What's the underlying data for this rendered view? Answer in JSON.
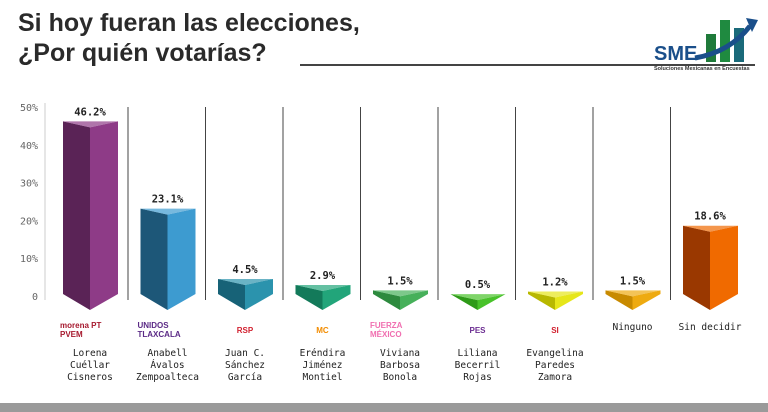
{
  "title_line1": "Si hoy fueran las elecciones,",
  "title_line2": "¿Por quién votarías?",
  "logo": {
    "text": "SME",
    "subtitle": "Soluciones Mexicanas en Encuestas"
  },
  "chart_data": {
    "type": "bar",
    "ylim": [
      0,
      50
    ],
    "yticks": [
      "0",
      "10%",
      "20%",
      "30%",
      "40%",
      "50%"
    ],
    "grid": false,
    "categories": [
      "Lorena Cuéllar Cisneros",
      "Anabell Ávalos Zempoalteca",
      "Juan C. Sánchez García",
      "Eréndira Jiménez Montiel",
      "Viviana Barbosa Bonola",
      "Liliana Becerril Rojas",
      "Evangelina Paredes Zamora",
      "Ninguno",
      "Sin decidir"
    ],
    "name_lines": [
      [
        "Lorena",
        "Cuéllar",
        "Cisneros"
      ],
      [
        "Anabell",
        "Ávalos",
        "Zempoalteca"
      ],
      [
        "Juan C.",
        "Sánchez",
        "García"
      ],
      [
        "Eréndira",
        "Jiménez",
        "Montiel"
      ],
      [
        "Viviana",
        "Barbosa",
        "Bonola"
      ],
      [
        "Liliana",
        "Becerril",
        "Rojas"
      ],
      [
        "Evangelina",
        "Paredes",
        "Zamora"
      ],
      [
        "Ninguno"
      ],
      [
        "Sin decidir"
      ]
    ],
    "values": [
      46.2,
      23.1,
      4.5,
      2.9,
      1.5,
      0.5,
      1.2,
      1.5,
      18.6
    ],
    "labels": [
      "46.2%",
      "23.1%",
      "4.5%",
      "2.9%",
      "1.5%",
      "0.5%",
      "1.2%",
      "1.5%",
      "18.6%"
    ],
    "colors": [
      [
        "#5a2356",
        "#8e3b87"
      ],
      [
        "#1d5778",
        "#3d9bd0"
      ],
      [
        "#176277",
        "#2b93ad"
      ],
      [
        "#137a5a",
        "#22a57a"
      ],
      [
        "#2d8a3e",
        "#46b05a"
      ],
      [
        "#2e9a18",
        "#48c22a"
      ],
      [
        "#b8b800",
        "#e6e61a"
      ],
      [
        "#c88a00",
        "#eeaa10"
      ],
      [
        "#9a3800",
        "#f06a00"
      ]
    ],
    "party_logos": [
      "morena PT PVEM",
      "UNIDOS TLAXCALA",
      "RSP",
      "MC",
      "FUERZA MÉXICO",
      "PES",
      "SI",
      "",
      ""
    ],
    "party_colors": [
      "#a6192e",
      "#5b2a86",
      "#d2202f",
      "#f28c00",
      "#f06fb0",
      "#6b2c91",
      "#d2202f",
      "",
      ""
    ]
  }
}
